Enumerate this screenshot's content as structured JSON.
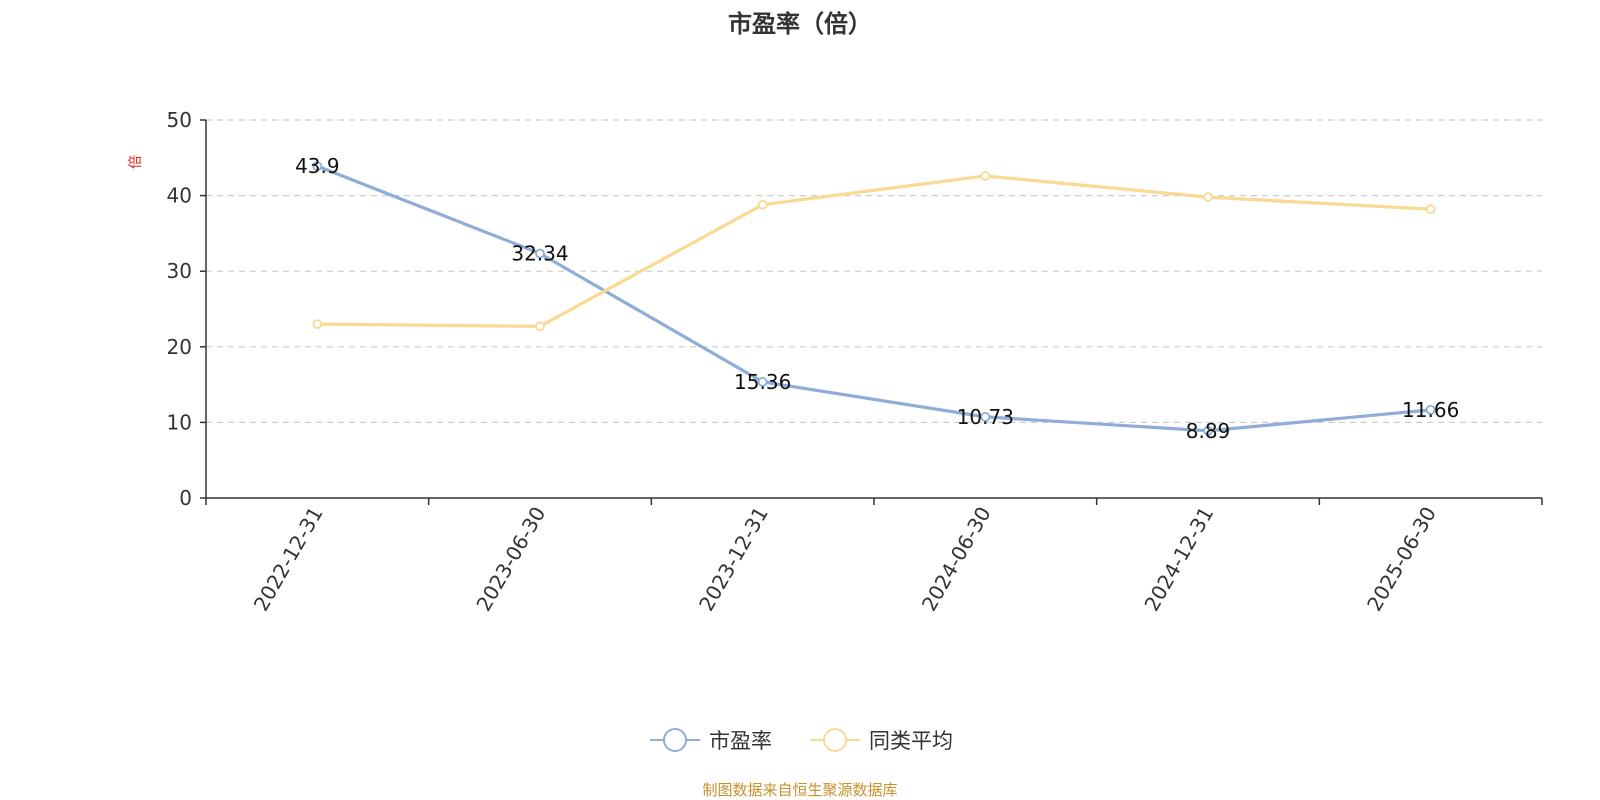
{
  "chart_data": {
    "type": "line",
    "title": "市盈率（倍）",
    "ylabel": "倍",
    "xlabel": "",
    "categories": [
      "2022-12-31",
      "2023-06-30",
      "2023-12-31",
      "2024-06-30",
      "2024-12-31",
      "2025-06-30"
    ],
    "ylim": [
      0,
      50
    ],
    "yticks": [
      0,
      10,
      20,
      30,
      40,
      50
    ],
    "grid": true,
    "legend_position": "bottom",
    "series": [
      {
        "name": "市盈率",
        "color": "#8eaed8",
        "values": [
          43.9,
          32.34,
          15.36,
          10.73,
          8.89,
          11.66
        ],
        "labels": [
          "43.9",
          "32.34",
          "15.36",
          "10.73",
          "8.89",
          "11.66"
        ]
      },
      {
        "name": "同类平均",
        "color": "#fad993",
        "values": [
          23.0,
          22.7,
          38.8,
          42.6,
          39.8,
          38.2
        ]
      }
    ]
  },
  "footer": {
    "source": "制图数据来自恒生聚源数据库"
  }
}
